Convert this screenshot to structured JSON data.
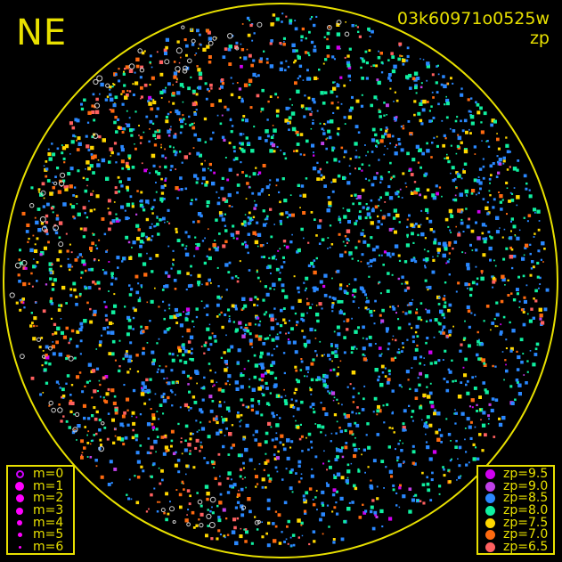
{
  "header": {
    "orientation": "NE",
    "image_id": "03k60971o0525w",
    "mode": "zp"
  },
  "magnitude_legend": [
    {
      "label": "m=0",
      "style": "ring",
      "size": 9
    },
    {
      "label": "m=1",
      "style": "dot",
      "size": 10
    },
    {
      "label": "m=2",
      "style": "dot",
      "size": 9
    },
    {
      "label": "m=3",
      "style": "dot",
      "size": 8
    },
    {
      "label": "m=4",
      "style": "dot",
      "size": 6
    },
    {
      "label": "m=5",
      "style": "dot",
      "size": 5
    },
    {
      "label": "m=6",
      "style": "dot",
      "size": 3
    }
  ],
  "zp_legend": [
    {
      "label": "zp=9.5",
      "color": "#d000f0"
    },
    {
      "label": "zp=9.0",
      "color": "#c040e8"
    },
    {
      "label": "zp=8.5",
      "color": "#2a88ff"
    },
    {
      "label": "zp=8.0",
      "color": "#10f0a0"
    },
    {
      "label": "zp=7.5",
      "color": "#ffd800"
    },
    {
      "label": "zp=7.0",
      "color": "#ff6a10"
    },
    {
      "label": "zp=6.5",
      "color": "#ff6060"
    }
  ],
  "colors": {
    "frame": "#e8e000",
    "background": "#000000",
    "unmeasured_star": "#d0d0d0"
  }
}
